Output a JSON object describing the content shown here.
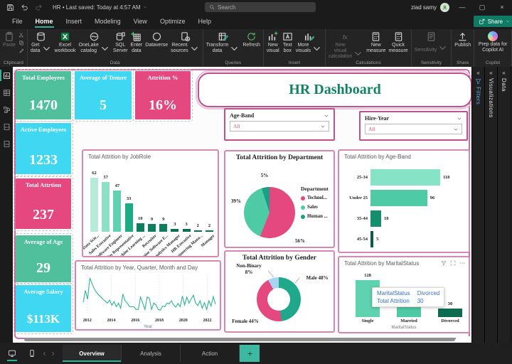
{
  "titlebar": {
    "doc_title": "HR • Last saved: Today at 4:57 AM",
    "search_placeholder": "Search",
    "user_name": "ziad samy"
  },
  "menubar": {
    "items": [
      {
        "label": "File",
        "active": false
      },
      {
        "label": "Home",
        "active": true
      },
      {
        "label": "Insert",
        "active": false
      },
      {
        "label": "Modeling",
        "active": false
      },
      {
        "label": "View",
        "active": false
      },
      {
        "label": "Optimize",
        "active": false
      },
      {
        "label": "Help",
        "active": false
      }
    ],
    "share_label": "Share"
  },
  "ribbon": {
    "groups": [
      {
        "label": "Clipboard",
        "buttons": [
          {
            "label": "Paste",
            "icon": "clipboard",
            "disabled": true,
            "smalls": [
              "cut",
              "copy",
              "brush"
            ]
          }
        ]
      },
      {
        "label": "Data",
        "buttons": [
          {
            "label": "Get data",
            "icon": "db",
            "dropdown": true
          },
          {
            "label": "Excel workbook",
            "icon": "excel"
          },
          {
            "label": "OneLake catalog",
            "icon": "onelake",
            "dropdown": true
          },
          {
            "label": "SQL Server",
            "icon": "sql"
          },
          {
            "label": "Enter data",
            "icon": "gridplus"
          },
          {
            "label": "Dataverse",
            "icon": "dataverse"
          },
          {
            "label": "Recent sources",
            "icon": "recent",
            "dropdown": true
          }
        ]
      },
      {
        "label": "Queries",
        "buttons": [
          {
            "label": "Transform data",
            "icon": "gridpencil",
            "dropdown": true
          },
          {
            "label": "Refresh",
            "icon": "refresh"
          }
        ]
      },
      {
        "label": "Insert",
        "buttons": [
          {
            "label": "New visual",
            "icon": "chartplus"
          },
          {
            "label": "Text box",
            "icon": "textbox"
          },
          {
            "label": "More visuals",
            "icon": "chartpencil",
            "dropdown": true
          }
        ]
      },
      {
        "label": "Calculations",
        "buttons": [
          {
            "label": "New visual calculation",
            "icon": "fx",
            "disabled": true,
            "dropdown": true
          },
          {
            "label": "New measure",
            "icon": "calc"
          },
          {
            "label": "Quick measure",
            "icon": "calc"
          }
        ]
      },
      {
        "label": "Sensitivity",
        "buttons": [
          {
            "label": "Sensitivity",
            "icon": "sens",
            "disabled": true,
            "dropdown": true
          }
        ]
      },
      {
        "label": "Share",
        "buttons": [
          {
            "label": "Publish",
            "icon": "publish"
          }
        ]
      },
      {
        "label": "Copilot",
        "buttons": [
          {
            "label": "Prep data for Copilot AI",
            "icon": "copilot",
            "wide": true
          }
        ]
      }
    ]
  },
  "view_rail": [
    {
      "name": "report-view",
      "icon": "report",
      "active": true
    },
    {
      "name": "table-view",
      "icon": "table",
      "active": false
    },
    {
      "name": "model-view",
      "icon": "model",
      "active": false
    },
    {
      "name": "dax-query-view",
      "icon": "dax",
      "active": false
    },
    {
      "name": "tmdl-view",
      "icon": "tmdl",
      "active": false
    }
  ],
  "report": {
    "title": "HR Dashboard",
    "kpi_cards": [
      {
        "label": "Total Employees",
        "value": "1470",
        "color": "#4fbf9c"
      },
      {
        "label": "Active Employees",
        "value": "1233",
        "color": "#3fd7f2"
      },
      {
        "label": "Total Attrtion",
        "value": "237",
        "color": "#e5487e"
      },
      {
        "label": "Average of Age",
        "value": "29",
        "color": "#4fbf9c"
      },
      {
        "label": "Average Salary",
        "value": "$113K",
        "color": "#3fd7f2"
      },
      {
        "label": "Average of Tenure",
        "value": "5",
        "color": "#3fd7f2"
      },
      {
        "label": "Attrition %",
        "value": "16%",
        "color": "#e5487e"
      }
    ],
    "slicers": [
      {
        "label": "Age-Band",
        "value": "All"
      },
      {
        "label": "Hire-Year",
        "value": "All"
      }
    ]
  },
  "chart_data": [
    {
      "id": "jobrole",
      "type": "bar",
      "title": "Total Attrition by JobRole",
      "categories": [
        "Data Scie...",
        "Sales Executive",
        "Software Engineer",
        "Sales Representative",
        "Machine Learning ...",
        "Recruiter",
        "Senior Software E...",
        "Analytics Manager",
        "HR Executive",
        "Engineering Mana...",
        "Manager"
      ],
      "values": [
        62,
        57,
        47,
        33,
        10,
        9,
        9,
        3,
        3,
        2,
        2
      ],
      "colors": [
        "#b5ecd9",
        "#8ce0c6",
        "#5fd2b0",
        "#1cab83",
        "#0f7e60",
        "#0f7e60",
        "#0f7e60",
        "#0c6b50",
        "#0c6b50",
        "#0c6b50",
        "#0c6b50"
      ]
    },
    {
      "id": "department",
      "type": "pie",
      "title": "Total Attrition by Department",
      "legend_title": "Department",
      "labels": [
        "Technol...",
        "Sales",
        "Human ..."
      ],
      "values": [
        56,
        39,
        5
      ],
      "pct_labels": [
        "56%",
        "39%",
        "5%"
      ],
      "colors": [
        "#e5487e",
        "#4ecaa5",
        "#17a085"
      ]
    },
    {
      "id": "ageband",
      "type": "bar-horizontal",
      "title": "Total Attrition by Age-Band",
      "categories": [
        "25-34",
        "Under 25",
        "35-44",
        "45-54"
      ],
      "values": [
        118,
        96,
        18,
        5
      ],
      "colors": [
        "#86e3c6",
        "#4ecaa5",
        "#148f6d",
        "#0b5c47"
      ]
    },
    {
      "id": "timeline",
      "type": "line",
      "title": "Total Attrition by Year, Quarter, Month and Day",
      "xlabel": "Year",
      "x_ticks": [
        "2012",
        "2014",
        "2016",
        "2018",
        "2020",
        "2022"
      ],
      "line_color": "#2eb394",
      "values": [
        30,
        62,
        38,
        95,
        80,
        66,
        57,
        50,
        44,
        38,
        33,
        28,
        36,
        22,
        32,
        18,
        28,
        14,
        52,
        34,
        28,
        18,
        18,
        18,
        11,
        11,
        44,
        28,
        11,
        44,
        41,
        11,
        28,
        23,
        11,
        9,
        20,
        18,
        28,
        26,
        34,
        23,
        17,
        27,
        18,
        47,
        23,
        44,
        28,
        39,
        49,
        28,
        21,
        34,
        14,
        29,
        11,
        34,
        20,
        45,
        25
      ]
    },
    {
      "id": "gender",
      "type": "donut",
      "title": "Total Attrition by Gender",
      "labels": [
        "Male 48%",
        "Female 44%",
        "Non-Binary",
        "8%"
      ],
      "values": [
        48,
        44,
        8
      ],
      "colors": [
        "#1fa98a",
        "#e5487e",
        "#a8d4f2"
      ]
    },
    {
      "id": "marital",
      "type": "bar",
      "title": "Total Attrition by MaritalStatus",
      "xlabel": "MaritalStatus",
      "categories": [
        "Single",
        "Married",
        "Divorced"
      ],
      "values": [
        128,
        79,
        30
      ],
      "colors": [
        "#5fd2b0",
        "#4ecaa5",
        "#0d6b50"
      ],
      "tooltip": {
        "rows": [
          [
            "MaritalStatus",
            "Divorced"
          ],
          [
            "Total Attrition",
            "30"
          ]
        ]
      }
    }
  ],
  "right_panels": [
    {
      "label": "Filters",
      "accent": true
    },
    {
      "label": "Visualizations",
      "accent": false
    },
    {
      "label": "Data",
      "accent": false
    }
  ],
  "pages": {
    "tabs": [
      {
        "label": "Overview",
        "active": true
      },
      {
        "label": "Analysis",
        "active": false
      },
      {
        "label": "Action",
        "active": false
      }
    ]
  }
}
